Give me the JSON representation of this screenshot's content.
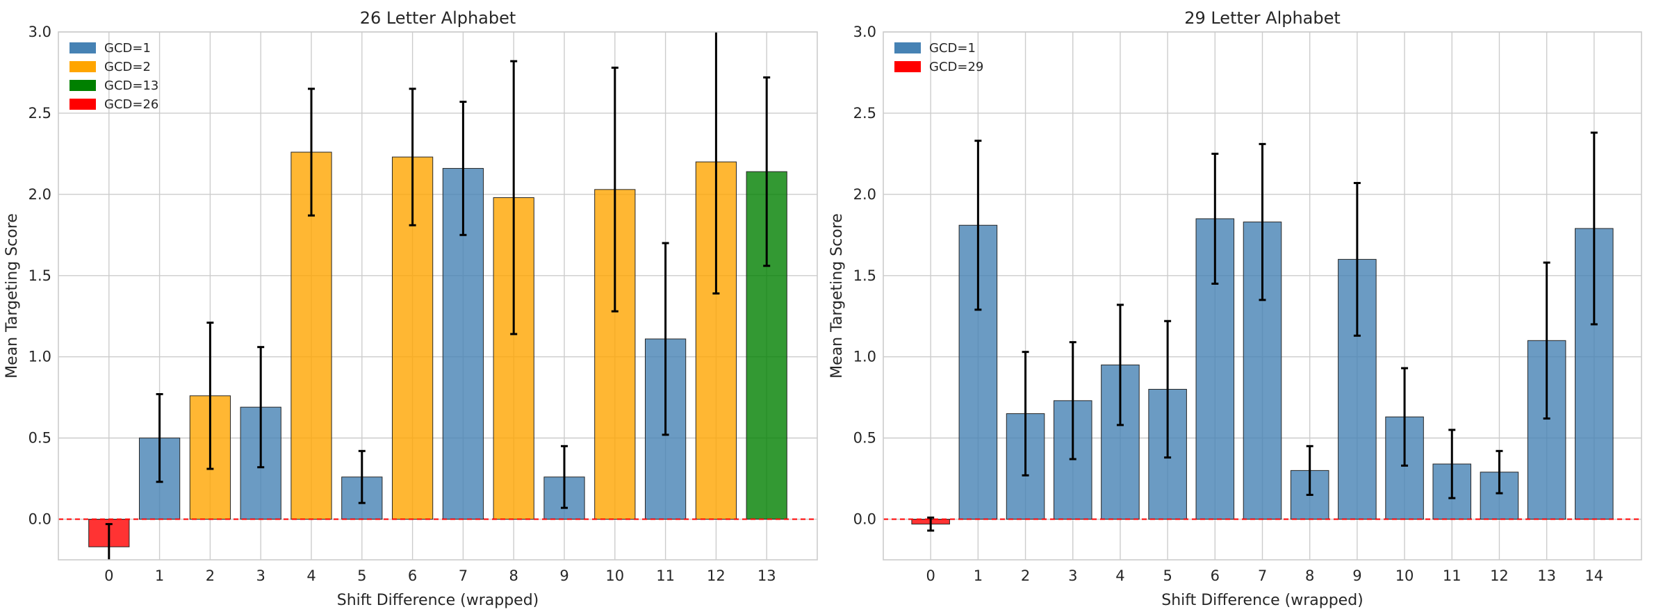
{
  "colors": {
    "GCD=1": "#4682b4",
    "GCD=2": "#ffa500",
    "GCD=13": "#008000",
    "GCD=26": "#ff0000",
    "GCD=29": "#ff0000"
  },
  "chart_data": [
    {
      "type": "bar",
      "title": "26 Letter Alphabet",
      "xlabel": "Shift Difference (wrapped)",
      "ylabel": "Mean Targeting Score",
      "ylim": [
        -0.25,
        3.0
      ],
      "yticks": [
        "0.0",
        "0.5",
        "1.0",
        "1.5",
        "2.0",
        "2.5",
        "3.0"
      ],
      "grid": true,
      "legend_position": "top-left",
      "legend": [
        "GCD=1",
        "GCD=2",
        "GCD=13",
        "GCD=26"
      ],
      "categories": [
        "0",
        "1",
        "2",
        "3",
        "4",
        "5",
        "6",
        "7",
        "8",
        "9",
        "10",
        "11",
        "12",
        "13"
      ],
      "values": [
        -0.17,
        0.5,
        0.76,
        0.69,
        2.26,
        0.26,
        2.23,
        2.16,
        1.98,
        0.26,
        2.03,
        1.11,
        2.2,
        2.14
      ],
      "errors": [
        0.14,
        0.27,
        0.45,
        0.37,
        0.39,
        0.16,
        0.42,
        0.41,
        0.84,
        0.19,
        0.75,
        0.59,
        0.81,
        0.58
      ],
      "groups": [
        "GCD=26",
        "GCD=1",
        "GCD=2",
        "GCD=1",
        "GCD=2",
        "GCD=1",
        "GCD=2",
        "GCD=1",
        "GCD=2",
        "GCD=1",
        "GCD=2",
        "GCD=1",
        "GCD=2",
        "GCD=13"
      ],
      "reference_line": 0.0
    },
    {
      "type": "bar",
      "title": "29 Letter Alphabet",
      "xlabel": "Shift Difference (wrapped)",
      "ylabel": "Mean Targeting Score",
      "ylim": [
        -0.25,
        3.0
      ],
      "yticks": [
        "0.0",
        "0.5",
        "1.0",
        "1.5",
        "2.0",
        "2.5",
        "3.0"
      ],
      "grid": true,
      "legend_position": "top-left",
      "legend": [
        "GCD=1",
        "GCD=29"
      ],
      "categories": [
        "0",
        "1",
        "2",
        "3",
        "4",
        "5",
        "6",
        "7",
        "8",
        "9",
        "10",
        "11",
        "12",
        "13",
        "14"
      ],
      "values": [
        -0.03,
        1.81,
        0.65,
        0.73,
        0.95,
        0.8,
        1.85,
        1.83,
        0.3,
        1.6,
        0.63,
        0.34,
        0.29,
        1.1,
        1.79
      ],
      "errors": [
        0.04,
        0.52,
        0.38,
        0.36,
        0.37,
        0.42,
        0.4,
        0.48,
        0.15,
        0.47,
        0.3,
        0.21,
        0.13,
        0.48,
        0.59
      ],
      "groups": [
        "GCD=29",
        "GCD=1",
        "GCD=1",
        "GCD=1",
        "GCD=1",
        "GCD=1",
        "GCD=1",
        "GCD=1",
        "GCD=1",
        "GCD=1",
        "GCD=1",
        "GCD=1",
        "GCD=1",
        "GCD=1",
        "GCD=1"
      ],
      "reference_line": 0.0
    }
  ]
}
